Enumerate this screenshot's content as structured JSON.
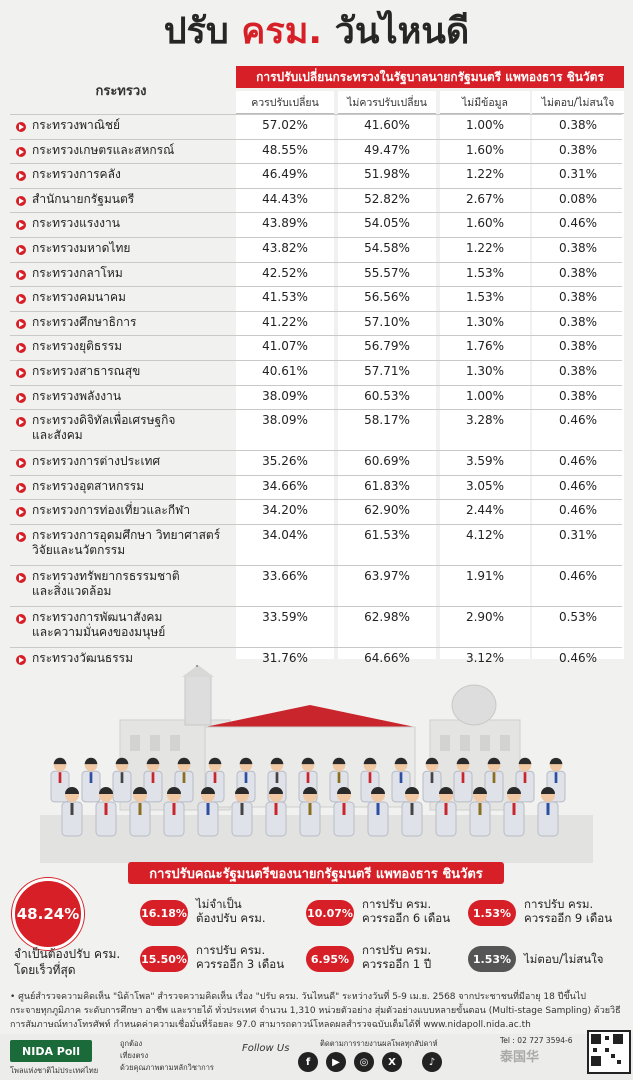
{
  "title": {
    "part1": "ปรับ ",
    "part2": "ครม.",
    "part3": " วันไหนดี"
  },
  "table": {
    "ministry_header": "กระทรวง",
    "group_header": "การปรับเปลี่ยนกระทรวงในรัฐบาลนายกรัฐมนตรี แพทองธาร ชินวัตร",
    "sub_headers": [
      "ควรปรับเปลี่ยน",
      "ไม่ควรปรับเปลี่ยน",
      "ไม่มีข้อมูล",
      "ไม่ตอบ/ไม่สนใจ"
    ],
    "rows": [
      {
        "name": "กระทรวงพาณิชย์",
        "v": [
          "57.02%",
          "41.60%",
          "1.00%",
          "0.38%"
        ]
      },
      {
        "name": "กระทรวงเกษตรและสหกรณ์",
        "v": [
          "48.55%",
          "49.47%",
          "1.60%",
          "0.38%"
        ]
      },
      {
        "name": "กระทรวงการคลัง",
        "v": [
          "46.49%",
          "51.98%",
          "1.22%",
          "0.31%"
        ]
      },
      {
        "name": "สำนักนายกรัฐมนตรี",
        "v": [
          "44.43%",
          "52.82%",
          "2.67%",
          "0.08%"
        ]
      },
      {
        "name": "กระทรวงแรงงาน",
        "v": [
          "43.89%",
          "54.05%",
          "1.60%",
          "0.46%"
        ]
      },
      {
        "name": "กระทรวงมหาดไทย",
        "v": [
          "43.82%",
          "54.58%",
          "1.22%",
          "0.38%"
        ]
      },
      {
        "name": "กระทรวงกลาโหม",
        "v": [
          "42.52%",
          "55.57%",
          "1.53%",
          "0.38%"
        ]
      },
      {
        "name": "กระทรวงคมนาคม",
        "v": [
          "41.53%",
          "56.56%",
          "1.53%",
          "0.38%"
        ]
      },
      {
        "name": "กระทรวงศึกษาธิการ",
        "v": [
          "41.22%",
          "57.10%",
          "1.30%",
          "0.38%"
        ]
      },
      {
        "name": "กระทรวงยุติธรรม",
        "v": [
          "41.07%",
          "56.79%",
          "1.76%",
          "0.38%"
        ]
      },
      {
        "name": "กระทรวงสาธารณสุข",
        "v": [
          "40.61%",
          "57.71%",
          "1.30%",
          "0.38%"
        ]
      },
      {
        "name": "กระทรวงพลังงาน",
        "v": [
          "38.09%",
          "60.53%",
          "1.00%",
          "0.38%"
        ]
      },
      {
        "name": "กระทรวงดิจิทัลเพื่อเศรษฐกิจ\nและสังคม",
        "v": [
          "38.09%",
          "58.17%",
          "3.28%",
          "0.46%"
        ]
      },
      {
        "name": "กระทรวงการต่างประเทศ",
        "v": [
          "35.26%",
          "60.69%",
          "3.59%",
          "0.46%"
        ]
      },
      {
        "name": "กระทรวงอุตสาหกรรม",
        "v": [
          "34.66%",
          "61.83%",
          "3.05%",
          "0.46%"
        ]
      },
      {
        "name": "กระทรวงการท่องเที่ยวและกีฬา",
        "v": [
          "34.20%",
          "62.90%",
          "2.44%",
          "0.46%"
        ]
      },
      {
        "name": "กระทรวงการอุดมศึกษา วิทยาศาสตร์\nวิจัยและนวัตกรรม",
        "v": [
          "34.04%",
          "61.53%",
          "4.12%",
          "0.31%"
        ]
      },
      {
        "name": "กระทรวงทรัพยากรธรรมชาติ\nและสิ่งแวดล้อม",
        "v": [
          "33.66%",
          "63.97%",
          "1.91%",
          "0.46%"
        ]
      },
      {
        "name": "กระทรวงการพัฒนาสังคม\nและความมั่นคงของมนุษย์",
        "v": [
          "33.59%",
          "62.98%",
          "2.90%",
          "0.53%"
        ]
      },
      {
        "name": "กระทรวงวัฒนธรรม",
        "v": [
          "31.76%",
          "64.66%",
          "3.12%",
          "0.46%"
        ]
      }
    ]
  },
  "summary": {
    "banner": "การปรับคณะรัฐมนตรีของนายกรัฐมนตรี แพทองธาร ชินวัตร",
    "main_value": "48.24%",
    "main_label": "จำเป็นต้องปรับ ครม.\nโดยเร็วที่สุด",
    "options": [
      {
        "value": "16.18%",
        "label": "ไม่จำเป็น\nต้องปรับ ครม."
      },
      {
        "value": "10.07%",
        "label": "การปรับ ครม.\nควรรออีก 6 เดือน"
      },
      {
        "value": "1.53%",
        "label": "การปรับ ครม.\nควรรออีก 9 เดือน"
      },
      {
        "value": "15.50%",
        "label": "การปรับ ครม.\nควรรออีก 3 เดือน"
      },
      {
        "value": "6.95%",
        "label": "การปรับ ครม.\nควรรออีก 1 ปี"
      },
      {
        "value": "1.53%",
        "label": "ไม่ตอบ/ไม่สนใจ"
      }
    ]
  },
  "footer": {
    "note_line1": "• ศูนย์สำรวจความคิดเห็น \"นิด้าโพล\" สำรวจความคิดเห็น เรื่อง \"ปรับ ครม. วันไหนดี\" ระหว่างวันที่ 5-9 เม.ย. 2568 จากประชาชนที่มีอายุ 18 ปีขึ้นไป",
    "note_line2": "กระจายทุกภูมิภาค ระดับการศึกษา อาชีพ และรายได้ ทั่วประเทศ จำนวน 1,310 หน่วยตัวอย่าง สุ่มตัวอย่างแบบหลายขั้นตอน (Multi-stage Sampling) ด้วยวิธี",
    "note_line3": "การสัมภาษณ์ทางโทรศัพท์ กำหนดค่าความเชื่อมั่นที่ร้อยละ 97.0 สามารถดาวน์โหลดผลสำรวจฉบับเต็มได้ที่ www.nidapoll.nida.ac.th",
    "logo": "NIDA Poll",
    "logo_sub": "โพลแห่งชาติไม่ประเทศไทย",
    "small1": "ถูกต้อง",
    "small2": "เที่ยงตรง",
    "small3": "ด้วยคุณภาพตามหลักวิชาการ",
    "follow": "Follow Us",
    "follow_desc": "ติดตามการรายงานผลโพลทุกสัปดาห์",
    "tel": "Tel : 02 727 3594-6",
    "social": [
      "f",
      "▶",
      "◎",
      "X",
      "♪"
    ],
    "watermark": "泰国华"
  }
}
